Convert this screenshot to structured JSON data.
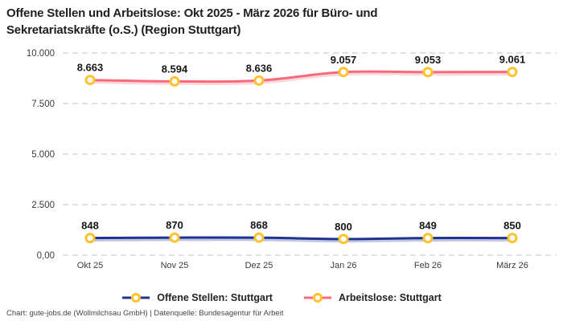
{
  "title": "Offene Stellen und Arbeitslose: Okt 2025 - März 2026 für Büro- und Sekretariatskräfte (o.S.) (Region Stuttgart)",
  "footer": "Chart: gute-jobs.de (Wollmilchsau GmbH) | Datenquelle: Bundesagentur für Arbeit",
  "chart_data": {
    "type": "line",
    "categories": [
      "Okt 25",
      "Nov 25",
      "Dez 25",
      "Jan 26",
      "Feb 26",
      "März 26"
    ],
    "series": [
      {
        "name": "Offene Stellen: Stuttgart",
        "color": "#1F3492",
        "values": [
          848,
          870,
          868,
          800,
          849,
          850
        ],
        "labels": [
          "848",
          "870",
          "868",
          "800",
          "849",
          "850"
        ]
      },
      {
        "name": "Arbeitslose: Stuttgart",
        "color": "#F76B7D",
        "values": [
          8663,
          8594,
          8636,
          9057,
          9053,
          9061
        ],
        "labels": [
          "8.663",
          "8.594",
          "8.636",
          "9.057",
          "9.053",
          "9.061"
        ]
      }
    ],
    "y_ticks": [
      {
        "value": 0,
        "label": "0,00"
      },
      {
        "value": 2500,
        "label": "2.500"
      },
      {
        "value": 5000,
        "label": "5.000"
      },
      {
        "value": 7500,
        "label": "7.500"
      },
      {
        "value": 10000,
        "label": "10.000"
      }
    ],
    "ylim": [
      0,
      10000
    ],
    "marker_color": "#FFC22E",
    "marker_fill": "#ffffff",
    "grid_color": "#cdcdcd",
    "grid_style": "dashed horizontal",
    "legend_position": "bottom",
    "curve": "spline"
  }
}
